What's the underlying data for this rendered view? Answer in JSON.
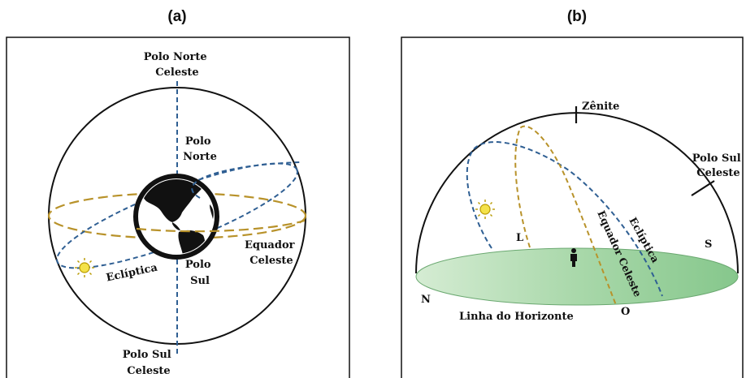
{
  "panel_a": {
    "label": "(a)",
    "north_celestial_pole": [
      "Polo Norte",
      "Celeste"
    ],
    "north_pole": [
      "Polo",
      "Norte"
    ],
    "south_pole": [
      "Polo",
      "Sul"
    ],
    "celestial_equator": [
      "Equador",
      "Celeste"
    ],
    "ecliptic": "Eclíptica",
    "south_celestial_pole": [
      "Polo Sul",
      "Celeste"
    ]
  },
  "panel_b": {
    "label": "(b)",
    "zenith": "Zênite",
    "south_celestial_pole": [
      "Polo Sul",
      "Celeste"
    ],
    "east": "L",
    "south": "S",
    "north": "N",
    "west": "O",
    "celestial_equator": "Equador Celeste",
    "ecliptic": "Eclíptica",
    "horizon_line": "Linha do Horizonte"
  },
  "colors": {
    "ecliptic": "#2f5f93",
    "equator": "#b8922a",
    "horizon_fill": "#9fd4a3",
    "earth": "#111111"
  }
}
